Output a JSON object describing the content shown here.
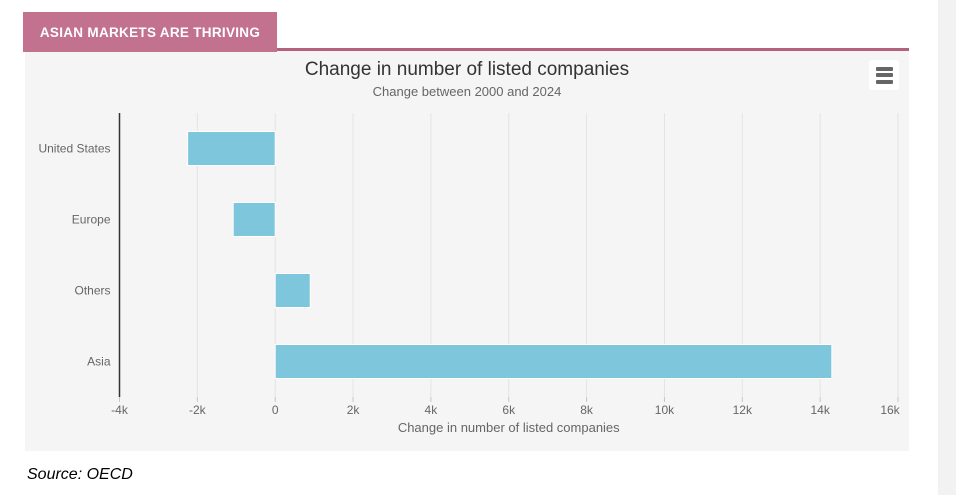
{
  "page": {
    "badge": "ASIAN MARKETS ARE THRIVING",
    "source": "Source: OECD",
    "colors": {
      "badge_bg": "#c2718f",
      "accent_border": "#b2617f",
      "card_bg": "#f5f5f5",
      "bar": "#7ec6dc",
      "title_text": "#333333",
      "muted_text": "#666666",
      "gridline": "#e4e4e4",
      "axis_line": "#333333"
    }
  },
  "chart": {
    "title": "Change in number of listed companies",
    "subtitle": "Change between 2000 and 2024",
    "menu_button_label": "chart context menu"
  },
  "chart_data": {
    "type": "bar",
    "orientation": "horizontal",
    "title": "Change in number of listed companies",
    "subtitle": "Change between 2000 and 2024",
    "categories": [
      "United States",
      "Europe",
      "Others",
      "Asia"
    ],
    "values": [
      -2250,
      -1080,
      900,
      14300
    ],
    "xlabel": "Change in number of listed companies",
    "ylabel": "",
    "xlim": [
      -4000,
      16000
    ],
    "tick_interval": 2000,
    "ticks": [
      {
        "value": -4000,
        "label": "-4k"
      },
      {
        "value": -2000,
        "label": "-2k"
      },
      {
        "value": 0,
        "label": "0"
      },
      {
        "value": 2000,
        "label": "2k"
      },
      {
        "value": 4000,
        "label": "4k"
      },
      {
        "value": 6000,
        "label": "6k"
      },
      {
        "value": 8000,
        "label": "8k"
      },
      {
        "value": 10000,
        "label": "10k"
      },
      {
        "value": 12000,
        "label": "12k"
      },
      {
        "value": 14000,
        "label": "14k"
      },
      {
        "value": 16000,
        "label": "16k"
      }
    ],
    "grid": true,
    "legend": false,
    "bar_color": "#7ec6dc"
  }
}
